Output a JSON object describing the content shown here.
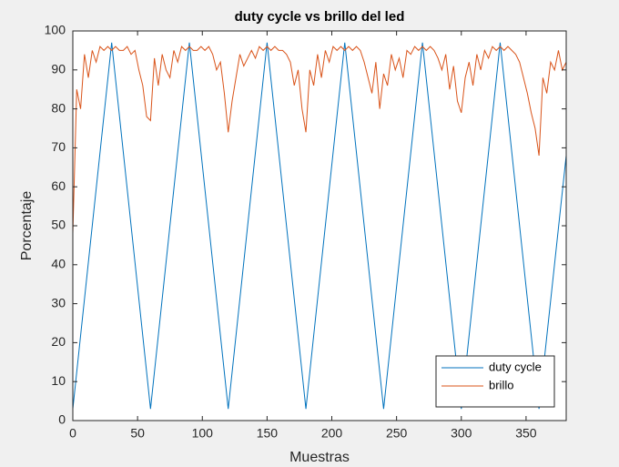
{
  "chart_data": {
    "type": "line",
    "title": "duty cycle vs brillo del led",
    "xlabel": "Muestras",
    "ylabel": "Porcentaje",
    "xlim": [
      0,
      381
    ],
    "ylim": [
      0,
      100
    ],
    "xticks": [
      0,
      50,
      100,
      150,
      200,
      250,
      300,
      350
    ],
    "yticks": [
      0,
      10,
      20,
      30,
      40,
      50,
      60,
      70,
      80,
      90,
      100
    ],
    "legend": "lower right",
    "series": [
      {
        "name": "duty cycle",
        "color": "#0072bd",
        "x": [
          0,
          30,
          60,
          90,
          120,
          150,
          180,
          210,
          240,
          270,
          300,
          330,
          360,
          381
        ],
        "values": [
          3,
          97,
          3,
          97,
          3,
          97,
          3,
          97,
          3,
          97,
          3,
          97,
          3,
          68
        ]
      },
      {
        "name": "brillo",
        "color": "#d95319",
        "x": [
          0,
          3,
          6,
          9,
          12,
          15,
          18,
          21,
          24,
          27,
          30,
          33,
          36,
          39,
          42,
          45,
          48,
          51,
          54,
          57,
          60,
          63,
          66,
          69,
          72,
          75,
          78,
          81,
          84,
          87,
          90,
          93,
          96,
          99,
          102,
          105,
          108,
          111,
          114,
          117,
          120,
          123,
          126,
          129,
          132,
          135,
          138,
          141,
          144,
          147,
          150,
          153,
          156,
          159,
          162,
          165,
          168,
          171,
          174,
          177,
          180,
          183,
          186,
          189,
          192,
          195,
          198,
          201,
          204,
          207,
          210,
          213,
          216,
          219,
          222,
          225,
          228,
          231,
          234,
          237,
          240,
          243,
          246,
          249,
          252,
          255,
          258,
          261,
          264,
          267,
          270,
          273,
          276,
          279,
          282,
          285,
          288,
          291,
          294,
          297,
          300,
          303,
          306,
          309,
          312,
          315,
          318,
          321,
          324,
          327,
          330,
          333,
          336,
          339,
          342,
          345,
          348,
          351,
          354,
          357,
          360,
          363,
          366,
          369,
          372,
          375,
          378,
          381
        ],
        "values": [
          48,
          85,
          80,
          94,
          88,
          95,
          92,
          96,
          95,
          96,
          95,
          96,
          95,
          95,
          96,
          94,
          95,
          90,
          86,
          78,
          77,
          93,
          86,
          94,
          90,
          88,
          95,
          92,
          96,
          95,
          96,
          95,
          95,
          96,
          95,
          96,
          94,
          90,
          92,
          84,
          74,
          82,
          88,
          94,
          91,
          93,
          95,
          93,
          96,
          95,
          96,
          95,
          96,
          95,
          95,
          94,
          92,
          86,
          90,
          80,
          74,
          90,
          86,
          94,
          88,
          95,
          92,
          96,
          95,
          96,
          95,
          96,
          95,
          96,
          95,
          92,
          88,
          84,
          92,
          80,
          89,
          86,
          94,
          90,
          93,
          88,
          95,
          94,
          96,
          95,
          96,
          95,
          96,
          95,
          93,
          90,
          94,
          85,
          91,
          82,
          79,
          88,
          92,
          86,
          94,
          90,
          95,
          93,
          96,
          95,
          96,
          95,
          96,
          95,
          94,
          92,
          88,
          84,
          79,
          75,
          68,
          88,
          84,
          92,
          90,
          95,
          90,
          92
        ]
      }
    ]
  }
}
